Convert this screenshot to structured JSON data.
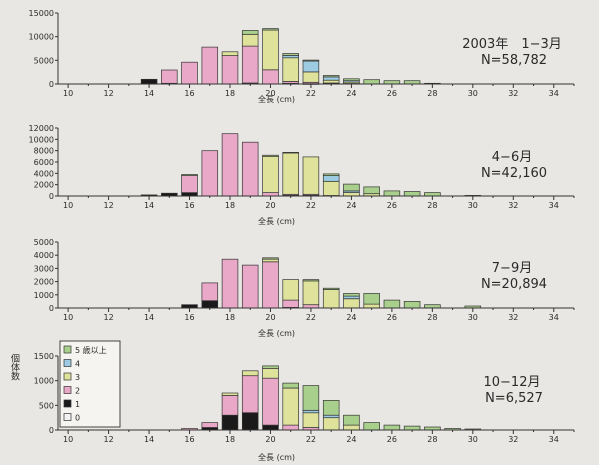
{
  "colors": {
    "age0": "#f2f2f2",
    "age1": "#1a1a1a",
    "age2": "#e9a8c7",
    "age3": "#dee29a",
    "age4": "#9ccbe2",
    "age5plus": "#a9cf8c",
    "axis": "#333333",
    "text": "#2a2a2a"
  },
  "legend": {
    "ylabel": "個体数",
    "entries": [
      "5 歳以上",
      "4",
      "3",
      "2",
      "1",
      "0"
    ]
  },
  "chart_data": [
    {
      "type": "bar",
      "stacked": true,
      "title": "2003年　1−3月",
      "n_label": "N=58,782",
      "xlabel": "全長 (cm)",
      "ylabel": "",
      "x_ticks": [
        10,
        12,
        14,
        16,
        18,
        20,
        22,
        24,
        26,
        28,
        30,
        32,
        34
      ],
      "y_ticks": [
        0,
        5000,
        10000,
        15000
      ],
      "ylim": [
        0,
        15000
      ],
      "series": [
        {
          "name": "0",
          "values": {}
        },
        {
          "name": "1",
          "values": {
            "14": 1000,
            "15": 150,
            "16": 0,
            "19": 200,
            "21": 150,
            "22": 50,
            "23": 200,
            "24": 100
          }
        },
        {
          "name": "2",
          "values": {
            "15": 2800,
            "16": 4600,
            "17": 7800,
            "18": 6000,
            "19": 7800,
            "20": 3000,
            "21": 400,
            "22": 300
          }
        },
        {
          "name": "3",
          "values": {
            "18": 800,
            "19": 2500,
            "20": 8400,
            "21": 5000,
            "22": 2200,
            "23": 600,
            "24": 300
          }
        },
        {
          "name": "4",
          "values": {
            "21": 500,
            "22": 2300,
            "23": 700,
            "24": 300
          }
        },
        {
          "name": "5 歳以上",
          "values": {
            "19": 800,
            "20": 300,
            "21": 400,
            "22": 200,
            "23": 300,
            "24": 400,
            "25": 900,
            "26": 700,
            "27": 700,
            "28": 150
          }
        }
      ]
    },
    {
      "type": "bar",
      "stacked": true,
      "title": "4−6月",
      "n_label": "N=42,160",
      "xlabel": "全長 (cm)",
      "ylabel": "",
      "x_ticks": [
        10,
        12,
        14,
        16,
        18,
        20,
        22,
        24,
        26,
        28,
        30,
        32,
        34
      ],
      "y_ticks": [
        0,
        2000,
        4000,
        6000,
        8000,
        10000,
        12000
      ],
      "ylim": [
        0,
        12000
      ],
      "series": [
        {
          "name": "0",
          "values": {}
        },
        {
          "name": "1",
          "values": {
            "14": 200,
            "15": 500,
            "16": 600,
            "21": 100,
            "22": 100,
            "23": 100
          }
        },
        {
          "name": "2",
          "values": {
            "16": 3000,
            "17": 8000,
            "18": 11000,
            "19": 9500,
            "20": 600,
            "21": 200,
            "22": 200
          }
        },
        {
          "name": "3",
          "values": {
            "20": 6400,
            "21": 7300,
            "22": 6600,
            "23": 2500,
            "24": 600,
            "25": 400
          }
        },
        {
          "name": "4",
          "values": {
            "23": 1000,
            "24": 300
          }
        },
        {
          "name": "5 歳以上",
          "values": {
            "16": 200,
            "20": 200,
            "21": 100,
            "23": 300,
            "24": 1200,
            "25": 1200,
            "26": 900,
            "27": 800,
            "28": 600,
            "30": 100
          }
        }
      ]
    },
    {
      "type": "bar",
      "stacked": true,
      "title": "7−9月",
      "n_label": "N=20,894",
      "xlabel": "全長 (cm)",
      "ylabel": "",
      "x_ticks": [
        10,
        12,
        14,
        16,
        18,
        20,
        22,
        24,
        26,
        28,
        30,
        32,
        34
      ],
      "y_ticks": [
        0,
        1000,
        2000,
        3000,
        4000,
        5000
      ],
      "ylim": [
        0,
        5000
      ],
      "series": [
        {
          "name": "0",
          "values": {}
        },
        {
          "name": "1",
          "values": {
            "16": 250,
            "17": 550,
            "21": 50
          }
        },
        {
          "name": "2",
          "values": {
            "17": 1350,
            "18": 3700,
            "19": 3250,
            "20": 3500,
            "21": 550,
            "22": 250
          }
        },
        {
          "name": "3",
          "values": {
            "20": 200,
            "21": 1550,
            "22": 1800,
            "23": 1400,
            "24": 700,
            "25": 300
          }
        },
        {
          "name": "4",
          "values": {
            "24": 200
          }
        },
        {
          "name": "5 歳以上",
          "values": {
            "20": 100,
            "22": 100,
            "23": 100,
            "24": 200,
            "25": 800,
            "26": 600,
            "27": 500,
            "28": 250,
            "30": 150
          }
        }
      ]
    },
    {
      "type": "bar",
      "stacked": true,
      "title": "10−12月",
      "n_label": "N=6,527",
      "xlabel": "全長 (cm)",
      "ylabel": "個体数",
      "x_ticks": [
        10,
        12,
        14,
        16,
        18,
        20,
        22,
        24,
        26,
        28,
        30,
        32,
        34
      ],
      "y_ticks": [
        0,
        500,
        1000,
        1500
      ],
      "ylim": [
        0,
        1500
      ],
      "series": [
        {
          "name": "0",
          "values": {}
        },
        {
          "name": "1",
          "values": {
            "17": 50,
            "18": 300,
            "19": 350,
            "20": 100
          }
        },
        {
          "name": "2",
          "values": {
            "16": 30,
            "17": 100,
            "18": 400,
            "19": 750,
            "20": 950,
            "21": 100,
            "22": 50
          }
        },
        {
          "name": "3",
          "values": {
            "18": 50,
            "19": 100,
            "20": 200,
            "21": 750,
            "22": 300,
            "23": 250,
            "24": 100
          }
        },
        {
          "name": "4",
          "values": {
            "22": 50,
            "23": 50
          }
        },
        {
          "name": "5 歳以上",
          "values": {
            "20": 50,
            "21": 100,
            "22": 500,
            "23": 300,
            "24": 200,
            "25": 150,
            "26": 100,
            "27": 80,
            "28": 60,
            "29": 30,
            "30": 20
          }
        }
      ]
    }
  ]
}
